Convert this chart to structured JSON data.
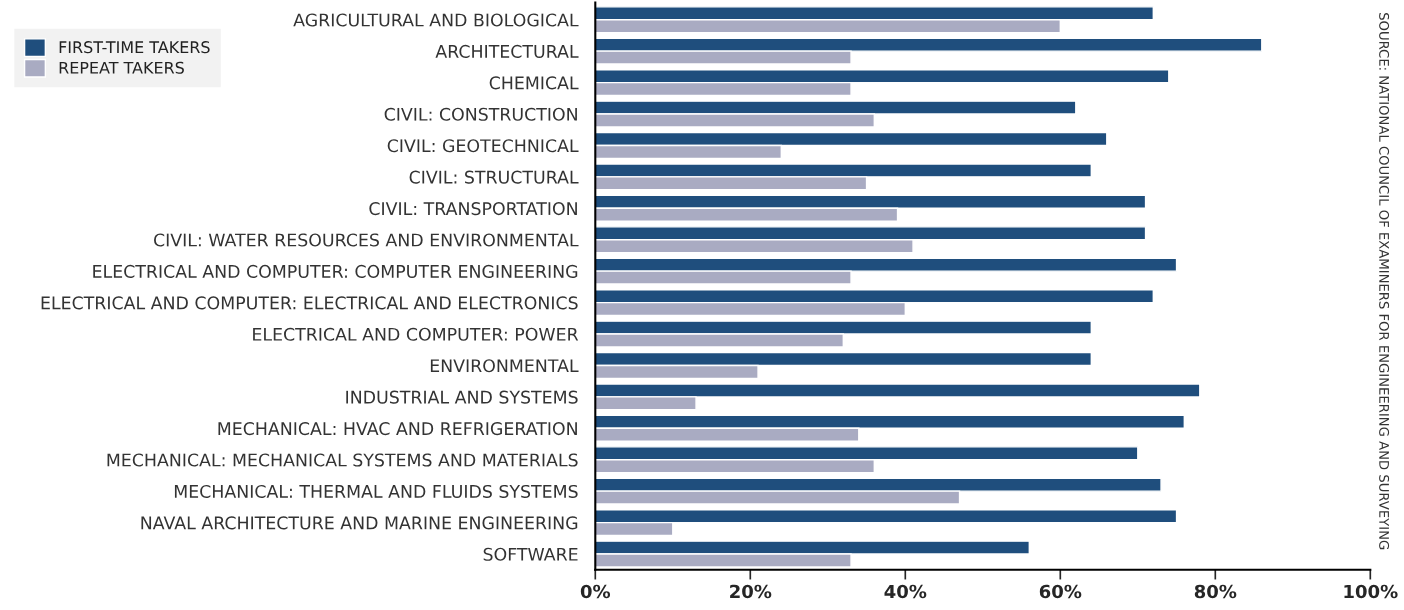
{
  "chart_data": {
    "type": "bar",
    "orientation": "horizontal",
    "categories": [
      "AGRICULTURAL AND BIOLOGICAL",
      "ARCHITECTURAL",
      "CHEMICAL",
      "CIVIL: CONSTRUCTION",
      "CIVIL: GEOTECHNICAL",
      "CIVIL: STRUCTURAL",
      "CIVIL: TRANSPORTATION",
      "CIVIL: WATER RESOURCES AND ENVIRONMENTAL",
      "ELECTRICAL AND COMPUTER: COMPUTER ENGINEERING",
      "ELECTRICAL AND COMPUTER: ELECTRICAL AND ELECTRONICS",
      "ELECTRICAL AND COMPUTER: POWER",
      "ENVIRONMENTAL",
      "INDUSTRIAL AND SYSTEMS",
      "MECHANICAL: HVAC AND REFRIGERATION",
      "MECHANICAL: MECHANICAL SYSTEMS AND MATERIALS",
      "MECHANICAL: THERMAL AND FLUIDS SYSTEMS",
      "NAVAL ARCHITECTURE AND MARINE ENGINEERING",
      "SOFTWARE"
    ],
    "series": [
      {
        "name": "FIRST-TIME TAKERS",
        "color": "#1f4e7d",
        "values": [
          72,
          86,
          74,
          62,
          66,
          64,
          71,
          71,
          75,
          72,
          64,
          64,
          78,
          76,
          70,
          73,
          75,
          56
        ]
      },
      {
        "name": "REPEAT TAKERS",
        "color": "#a9abc2",
        "values": [
          60,
          33,
          33,
          36,
          24,
          35,
          39,
          41,
          33,
          40,
          32,
          21,
          13,
          34,
          36,
          47,
          10,
          33
        ]
      }
    ],
    "xlim": [
      0,
      100
    ],
    "xticks": [
      {
        "value": 0,
        "label": "0%"
      },
      {
        "value": 20,
        "label": "20%"
      },
      {
        "value": 40,
        "label": "40%"
      },
      {
        "value": 60,
        "label": "60%"
      },
      {
        "value": 80,
        "label": "80%"
      },
      {
        "value": 100,
        "label": "100%"
      }
    ],
    "annotations": [
      "SOURCE: NATIONAL COUNCIL OF EXAMINERS FOR ENGINEERING AND SURVEYING"
    ],
    "legend": "top left",
    "grid": false
  }
}
